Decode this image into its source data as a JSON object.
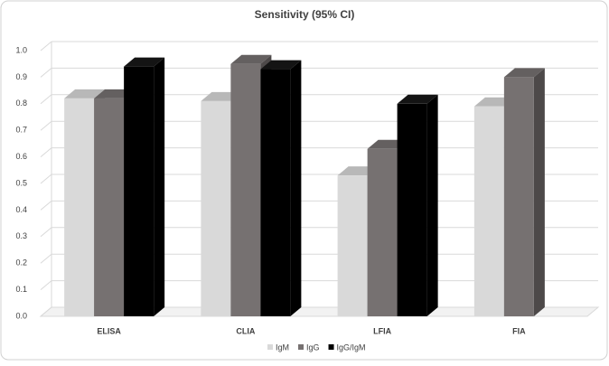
{
  "chart_data": {
    "type": "bar3d",
    "title": "Sensitivity (95% CI)",
    "categories": [
      "ELISA",
      "CLIA",
      "LFIA",
      "FIA"
    ],
    "series": [
      {
        "name": "IgM",
        "color": "#d9d9d9",
        "values": [
          0.82,
          0.81,
          0.53,
          0.79
        ]
      },
      {
        "name": "IgG",
        "color": "#767171",
        "values": [
          0.82,
          0.95,
          0.63,
          0.9
        ]
      },
      {
        "name": "IgG/IgM",
        "color": "#000000",
        "values": [
          0.94,
          0.93,
          0.8,
          null
        ]
      }
    ],
    "ylim": [
      0,
      1
    ],
    "yticks": [
      {
        "value": 0,
        "label": "0.0"
      },
      0.1,
      0.2,
      0.3,
      0.4,
      0.5,
      0.6,
      0.7,
      0.8,
      0.9,
      {
        "value": 1,
        "label": "1.0"
      }
    ],
    "grid": true,
    "legend": "bottom"
  }
}
